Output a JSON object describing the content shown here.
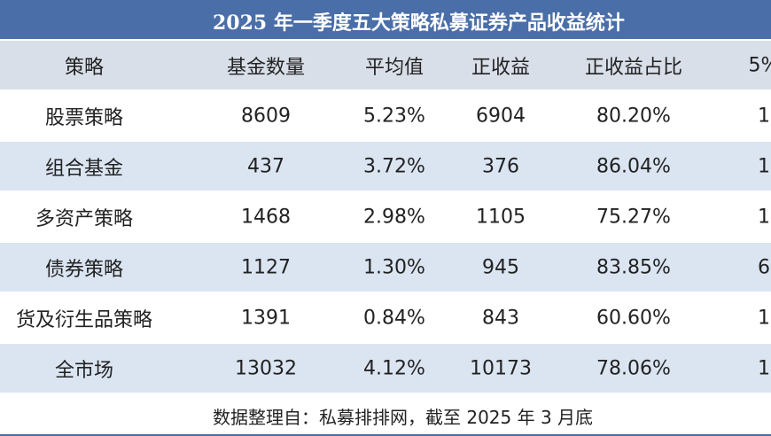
{
  "table": {
    "title": "2025 年一季度五大策略私募证券产品收益统计",
    "header": [
      "策略",
      "基金数量",
      "平均值",
      "正收益",
      "正收益占比",
      "5%"
    ],
    "rows": [
      [
        "股票策略",
        "8609",
        "5.23%",
        "6904",
        "80.20%",
        "1"
      ],
      [
        "组合基金",
        "437",
        "3.72%",
        "376",
        "86.04%",
        "1"
      ],
      [
        "多资产策略",
        "1468",
        "2.98%",
        "1105",
        "75.27%",
        "1"
      ],
      [
        "债券策略",
        "1127",
        "1.30%",
        "945",
        "83.85%",
        "6"
      ],
      [
        "货及衍生品策略",
        "1391",
        "0.84%",
        "843",
        "60.60%",
        "1"
      ],
      [
        "全市场",
        "13032",
        "4.12%",
        "10173",
        "78.06%",
        "1"
      ]
    ],
    "footer": "数据整理自：私募排排网，截至 2025 年 3 月底"
  }
}
